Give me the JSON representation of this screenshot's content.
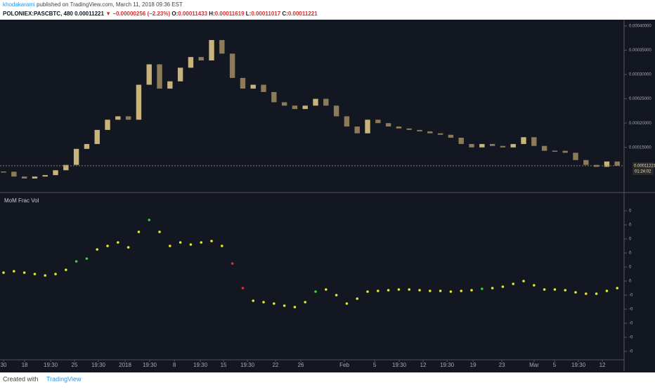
{
  "header": {
    "author": "khodakarami",
    "published": " published on TradingView.com, March 11, 2018 09:36 EST",
    "quote": [
      {
        "text": "POLONIEX:PASCBTC, 480  0.00011221 ",
        "color": "#131722"
      },
      {
        "text": "▼ −0.00000256 (−2.23%) ",
        "color": "#d32f2f"
      },
      {
        "text": "O:",
        "color": "#131722"
      },
      {
        "text": "0.00011433 ",
        "color": "#d32f2f"
      },
      {
        "text": "H:",
        "color": "#131722"
      },
      {
        "text": "0.00011619 ",
        "color": "#d32f2f"
      },
      {
        "text": "L:",
        "color": "#131722"
      },
      {
        "text": "0.00011017 ",
        "color": "#d32f2f"
      },
      {
        "text": "C:",
        "color": "#131722"
      },
      {
        "text": "0.00011221",
        "color": "#d32f2f"
      }
    ]
  },
  "footer": {
    "created": "Created with",
    "brand": "TradingView"
  },
  "chart_data": [
    {
      "type": "candlestick",
      "up_color": "#c8b37a",
      "down_color": "#8c7b58",
      "values": [
        0.0001,
        9e-05,
        8.6e-05,
        9e-05,
        9.3e-05,
        0.000103,
        0.000114,
        0.000147,
        0.000157,
        0.000186,
        0.000207,
        0.000214,
        0.000207,
        0.000279,
        0.000321,
        0.000271,
        0.000286,
        0.000314,
        0.000336,
        0.000329,
        0.000371,
        0.000343,
        0.000293,
        0.000271,
        0.000279,
        0.000264,
        0.000243,
        0.000236,
        0.000229,
        0.000236,
        0.00025,
        0.000236,
        0.000214,
        0.000193,
        0.000179,
        0.000207,
        0.0002,
        0.000193,
        0.000189,
        0.000186,
        0.000183,
        0.000179,
        0.000176,
        0.00017,
        0.000157,
        0.00015,
        0.000157,
        0.000153,
        0.00015,
        0.000157,
        0.000171,
        0.000153,
        0.000143,
        0.000143,
        0.000139,
        0.000124,
        0.000114,
        0.00011,
        0.000121,
        0.00011221
      ],
      "last_price": 0.00011221,
      "countdown": "01:24:02",
      "ylim": [
        6e-05,
        0.00041
      ],
      "yticks": [
        {
          "value": 0.0004,
          "label": "0.00040000"
        },
        {
          "value": 0.00035,
          "label": "0.00035000"
        },
        {
          "value": 0.0003,
          "label": "0.00030000"
        },
        {
          "value": 0.00025,
          "label": "0.00025000"
        },
        {
          "value": 0.0002,
          "label": "0.00020000"
        },
        {
          "value": 0.00015,
          "label": "0.00015000"
        }
      ],
      "xlim": [
        -0.34,
        59.66
      ],
      "xticks": [
        {
          "value": 0,
          "label": "30"
        },
        {
          "value": 2.03,
          "label": "18"
        },
        {
          "value": 4.53,
          "label": "19:30"
        },
        {
          "value": 6.82,
          "label": "25"
        },
        {
          "value": 9.12,
          "label": "19:30"
        },
        {
          "value": 11.69,
          "label": "2018"
        },
        {
          "value": 14.05,
          "label": "19:30"
        },
        {
          "value": 16.42,
          "label": "8"
        },
        {
          "value": 18.92,
          "label": "19:30"
        },
        {
          "value": 21.15,
          "label": "15"
        },
        {
          "value": 23.45,
          "label": "19:30"
        },
        {
          "value": 26.15,
          "label": "22"
        },
        {
          "value": 28.58,
          "label": "26"
        },
        {
          "value": 32.77,
          "label": "Feb"
        },
        {
          "value": 35.68,
          "label": "5"
        },
        {
          "value": 38.04,
          "label": "19:30"
        },
        {
          "value": 40.34,
          "label": "12"
        },
        {
          "value": 42.64,
          "label": "19:30"
        },
        {
          "value": 45.14,
          "label": "19"
        },
        {
          "value": 47.91,
          "label": "23"
        },
        {
          "value": 51.01,
          "label": "Mar"
        },
        {
          "value": 52.97,
          "label": "5"
        },
        {
          "value": 55.27,
          "label": "19:30"
        },
        {
          "value": 57.57,
          "label": "12"
        }
      ]
    },
    {
      "type": "scatter",
      "title": "MoM Frac Vol",
      "values": [
        0.0006,
        0.0007,
        0.0006,
        0.0005,
        0.0004,
        0.0005,
        0.0008,
        0.0014,
        0.0016,
        0.00225,
        0.0025,
        0.00275,
        0.0024,
        0.0035,
        0.00435,
        0.0035,
        0.0025,
        0.00275,
        0.0026,
        0.00275,
        0.00285,
        0.0025,
        0.00125,
        -0.0005,
        -0.0014,
        -0.0015,
        -0.0016,
        -0.00175,
        -0.00185,
        -0.0015,
        -0.00075,
        -0.0006,
        -0.001,
        -0.0016,
        -0.00125,
        -0.00075,
        -0.0007,
        -0.00065,
        -0.0006,
        -0.0006,
        -0.00065,
        -0.0007,
        -0.0007,
        -0.00075,
        -0.0007,
        -0.00065,
        -0.00055,
        -0.0005,
        -0.0004,
        -0.0002,
        0,
        -0.0003,
        -0.0006,
        -0.0006,
        -0.00065,
        -0.0008,
        -0.0009,
        -0.0009,
        -0.0007,
        -0.0005
      ],
      "colors": [
        "#e8e82a",
        "#e8e82a",
        "#e8e82a",
        "#e8e82a",
        "#e8e82a",
        "#e8e82a",
        "#e8e82a",
        "#3ad13a",
        "#3ad13a",
        "#e8e82a",
        "#e8e82a",
        "#e8e82a",
        "#e8e82a",
        "#e8e82a",
        "#3ad13a",
        "#e8e82a",
        "#e8e82a",
        "#e8e82a",
        "#e8e82a",
        "#e8e82a",
        "#e8e82a",
        "#e8e82a",
        "#e03030",
        "#e03030",
        "#e8e82a",
        "#e8e82a",
        "#e8e82a",
        "#e8e82a",
        "#e8e82a",
        "#e8e82a",
        "#3ad13a",
        "#e8e82a",
        "#e8e82a",
        "#e8e82a",
        "#e8e82a",
        "#e8e82a",
        "#e8e82a",
        "#e8e82a",
        "#e8e82a",
        "#e8e82a",
        "#e8e82a",
        "#e8e82a",
        "#e8e82a",
        "#e8e82a",
        "#e8e82a",
        "#e8e82a",
        "#3ad13a",
        "#e8e82a",
        "#e8e82a",
        "#e8e82a",
        "#e8e82a",
        "#e8e82a",
        "#e8e82a",
        "#e8e82a",
        "#e8e82a",
        "#e8e82a",
        "#e8e82a",
        "#e8e82a",
        "#e8e82a",
        "#e8e82a"
      ],
      "ylim": [
        -0.0056,
        0.0061
      ],
      "yticks": [
        {
          "value": 0.005,
          "label": "0"
        },
        {
          "value": 0.004,
          "label": "0"
        },
        {
          "value": 0.003,
          "label": "0"
        },
        {
          "value": 0.002,
          "label": "0"
        },
        {
          "value": 0.001,
          "label": "0"
        },
        0,
        {
          "value": -0.001,
          "label": "-0"
        },
        {
          "value": -0.002,
          "label": "-0"
        },
        {
          "value": -0.003,
          "label": "-0"
        },
        {
          "value": -0.004,
          "label": "-0"
        },
        {
          "value": -0.005,
          "label": "-0"
        }
      ]
    }
  ]
}
